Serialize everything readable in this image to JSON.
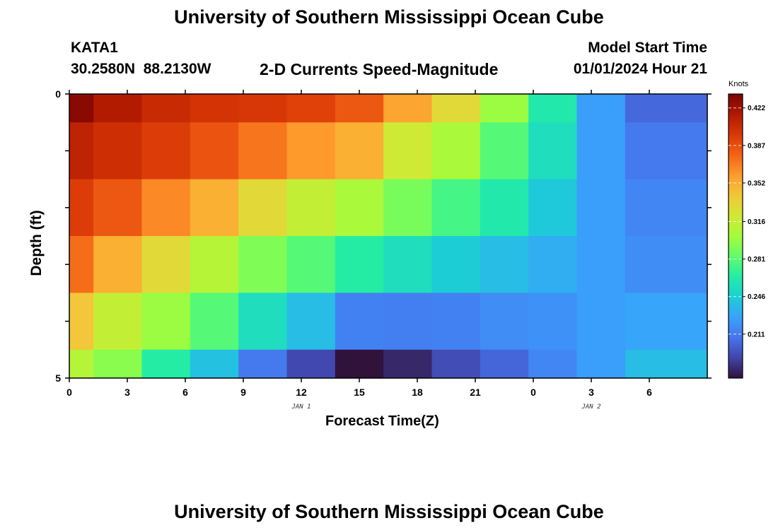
{
  "header": {
    "title": "University of Southern Mississippi Ocean Cube",
    "station_id": "KATA1",
    "coordinates": "30.2580N  88.2130W",
    "subtitle": "2-D Currents Speed-Magnitude",
    "model_start_label": "Model Start Time",
    "model_start_value": "01/01/2024 Hour 21"
  },
  "footer": {
    "title": "University of Southern Mississippi Ocean Cube"
  },
  "colors": {
    "scale": [
      "#30123b",
      "#4145ab",
      "#4675ed",
      "#39a2fc",
      "#1bcfd4",
      "#24eca6",
      "#61fc6c",
      "#a4fc3b",
      "#d1e834",
      "#f3c63a",
      "#fe9b2d",
      "#f36315",
      "#d93806",
      "#b11901",
      "#7a0403"
    ]
  },
  "chart_data": {
    "type": "heatmap",
    "title": "2-D Currents Speed-Magnitude",
    "xlabel": "Forecast Time(Z)",
    "ylabel": "Depth (ft)",
    "x_tick_labels": [
      "0",
      "3",
      "6",
      "9",
      "12",
      "15",
      "18",
      "21",
      "0",
      "3",
      "6"
    ],
    "x_range_hours": [
      0,
      33
    ],
    "date_labels": [
      {
        "label": "JAN 1",
        "hour": 12
      },
      {
        "label": "JAN 2",
        "hour": 27
      }
    ],
    "y_tick_labels": [
      "0",
      "5"
    ],
    "y_range": [
      0,
      5
    ],
    "x_column_edges_hours": [
      0,
      1.25,
      3.75,
      6.25,
      8.75,
      11.25,
      13.75,
      16.25,
      18.75,
      21.25,
      23.75,
      26.25,
      28.75,
      33
    ],
    "depth_row_edges": [
      0,
      0.5,
      1.5,
      2.5,
      3.5,
      4.5,
      5
    ],
    "values": [
      [
        0.43,
        0.415,
        0.405,
        0.4,
        0.398,
        0.393,
        0.383,
        0.355,
        0.33,
        0.3,
        0.262,
        0.225,
        0.203
      ],
      [
        0.41,
        0.403,
        0.395,
        0.385,
        0.372,
        0.36,
        0.35,
        0.32,
        0.305,
        0.28,
        0.255,
        0.225,
        0.21
      ],
      [
        0.395,
        0.383,
        0.365,
        0.35,
        0.33,
        0.315,
        0.305,
        0.29,
        0.275,
        0.262,
        0.243,
        0.225,
        0.215
      ],
      [
        0.375,
        0.35,
        0.33,
        0.31,
        0.292,
        0.28,
        0.265,
        0.255,
        0.245,
        0.238,
        0.232,
        0.225,
        0.218
      ],
      [
        0.34,
        0.315,
        0.3,
        0.28,
        0.255,
        0.238,
        0.213,
        0.212,
        0.213,
        0.218,
        0.22,
        0.225,
        0.228
      ],
      [
        0.31,
        0.295,
        0.265,
        0.24,
        0.21,
        0.19,
        0.167,
        0.178,
        0.192,
        0.202,
        0.215,
        0.225,
        0.238
      ]
    ],
    "colorbar": {
      "label": "Knots",
      "ticks": [
        "0.422",
        "0.387",
        "0.352",
        "0.316",
        "0.281",
        "0.246",
        "0.211"
      ],
      "range": [
        0.17,
        0.435
      ]
    }
  }
}
